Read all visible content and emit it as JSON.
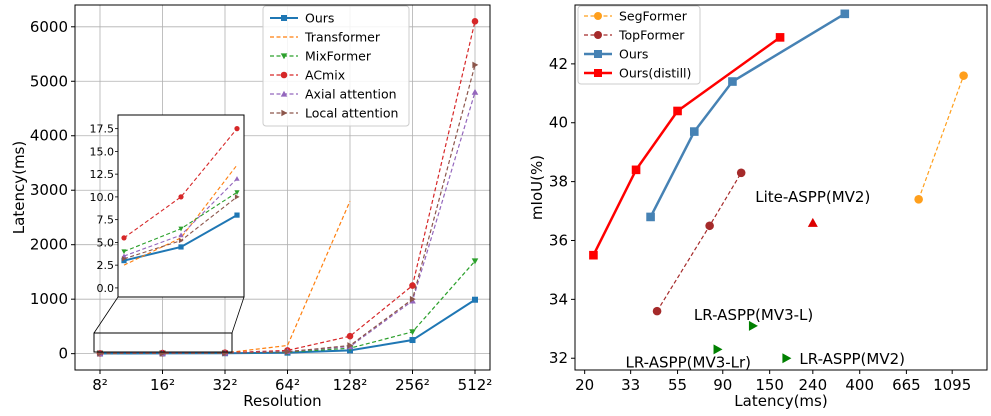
{
  "chart_data": [
    {
      "type": "line",
      "xlabel": "Resolution",
      "ylabel": "Latency(ms)",
      "categories": [
        "8²",
        "16²",
        "32²",
        "64²",
        "128²",
        "256²",
        "512²"
      ],
      "yticks": [
        0,
        1000,
        2000,
        3000,
        4000,
        5000,
        6000
      ],
      "ylim": [
        -300,
        6400
      ],
      "grid": true,
      "legend_position": "top-right",
      "series": [
        {
          "name": "Ours",
          "color": "#1f77b4",
          "style": "solid",
          "marker": "square",
          "values": [
            3.0,
            4.5,
            8.0,
            18,
            60,
            250,
            990
          ]
        },
        {
          "name": "Transformer",
          "color": "#ff7f0e",
          "style": "dashed",
          "marker": "none",
          "values": [
            2.5,
            5.5,
            13.5,
            150,
            2800,
            null,
            null
          ]
        },
        {
          "name": "MixFormer",
          "color": "#2ca02c",
          "style": "dashed",
          "marker": "triangle-down",
          "values": [
            4.0,
            6.5,
            10.5,
            30,
            100,
            400,
            1700
          ]
        },
        {
          "name": "ACmix",
          "color": "#d62728",
          "style": "dashed",
          "marker": "circle",
          "values": [
            5.5,
            10.0,
            17.5,
            60,
            320,
            1250,
            6100
          ]
        },
        {
          "name": "Axial attention",
          "color": "#9467bd",
          "style": "dashed",
          "marker": "triangle-up",
          "values": [
            3.5,
            5.8,
            12.0,
            40,
            130,
            970,
            4800
          ]
        },
        {
          "name": "Local attention",
          "color": "#8c564b",
          "style": "dashed",
          "marker": "triangle-right",
          "values": [
            3.2,
            5.2,
            10.0,
            35,
            150,
            1000,
            5300
          ]
        }
      ],
      "inset": {
        "categories_shown": [
          "8²",
          "16²",
          "32²"
        ],
        "yticks": [
          "0.0",
          "2.5",
          "5.0",
          "7.5",
          "10.0",
          "12.5",
          "15.0",
          "17.5"
        ],
        "ylim": [
          -1,
          19
        ]
      }
    },
    {
      "type": "line",
      "xlabel": "Latency(ms)",
      "ylabel": "mIoU(%)",
      "xscale": "log",
      "xticks": [
        20,
        33,
        55,
        90,
        150,
        240,
        400,
        665,
        1095
      ],
      "yticks": [
        32,
        34,
        36,
        38,
        40,
        42
      ],
      "xlim": [
        18,
        1600
      ],
      "ylim": [
        31.6,
        44.0
      ],
      "grid": false,
      "legend_position": "top-left",
      "series": [
        {
          "name": "SegFormer",
          "color": "#ff9f1c",
          "style": "dashed",
          "marker": "circle",
          "x": [
            760,
            1240
          ],
          "y": [
            37.4,
            41.6
          ]
        },
        {
          "name": "TopFormer",
          "color": "#a52a2a",
          "style": "dashed",
          "marker": "circle",
          "x": [
            44,
            78,
            110
          ],
          "y": [
            33.6,
            36.5,
            38.3
          ]
        },
        {
          "name": "Ours",
          "color": "#4682b4",
          "style": "solid",
          "marker": "square",
          "x": [
            41,
            66,
            100,
            340
          ],
          "y": [
            36.8,
            39.7,
            41.4,
            43.7
          ]
        },
        {
          "name": "Ours(distill)",
          "color": "#ff0000",
          "style": "solid",
          "marker": "square",
          "x": [
            22,
            35,
            55,
            168
          ],
          "y": [
            35.5,
            38.4,
            40.4,
            42.9
          ]
        }
      ],
      "points": [
        {
          "label": "Lite-ASPP(MV2)",
          "x": 240,
          "y": 36.6,
          "marker": "triangle-up",
          "color": "#dd0000"
        },
        {
          "label": "LR-ASPP(MV3-L)",
          "x": 125,
          "y": 33.1,
          "marker": "triangle-right",
          "color": "#008000"
        },
        {
          "label": "LR-ASPP(MV3-Lr)",
          "x": 85,
          "y": 32.3,
          "marker": "triangle-right",
          "color": "#008000"
        },
        {
          "label": "LR-ASPP(MV2)",
          "x": 180,
          "y": 32.0,
          "marker": "triangle-right",
          "color": "#008000"
        }
      ]
    }
  ]
}
